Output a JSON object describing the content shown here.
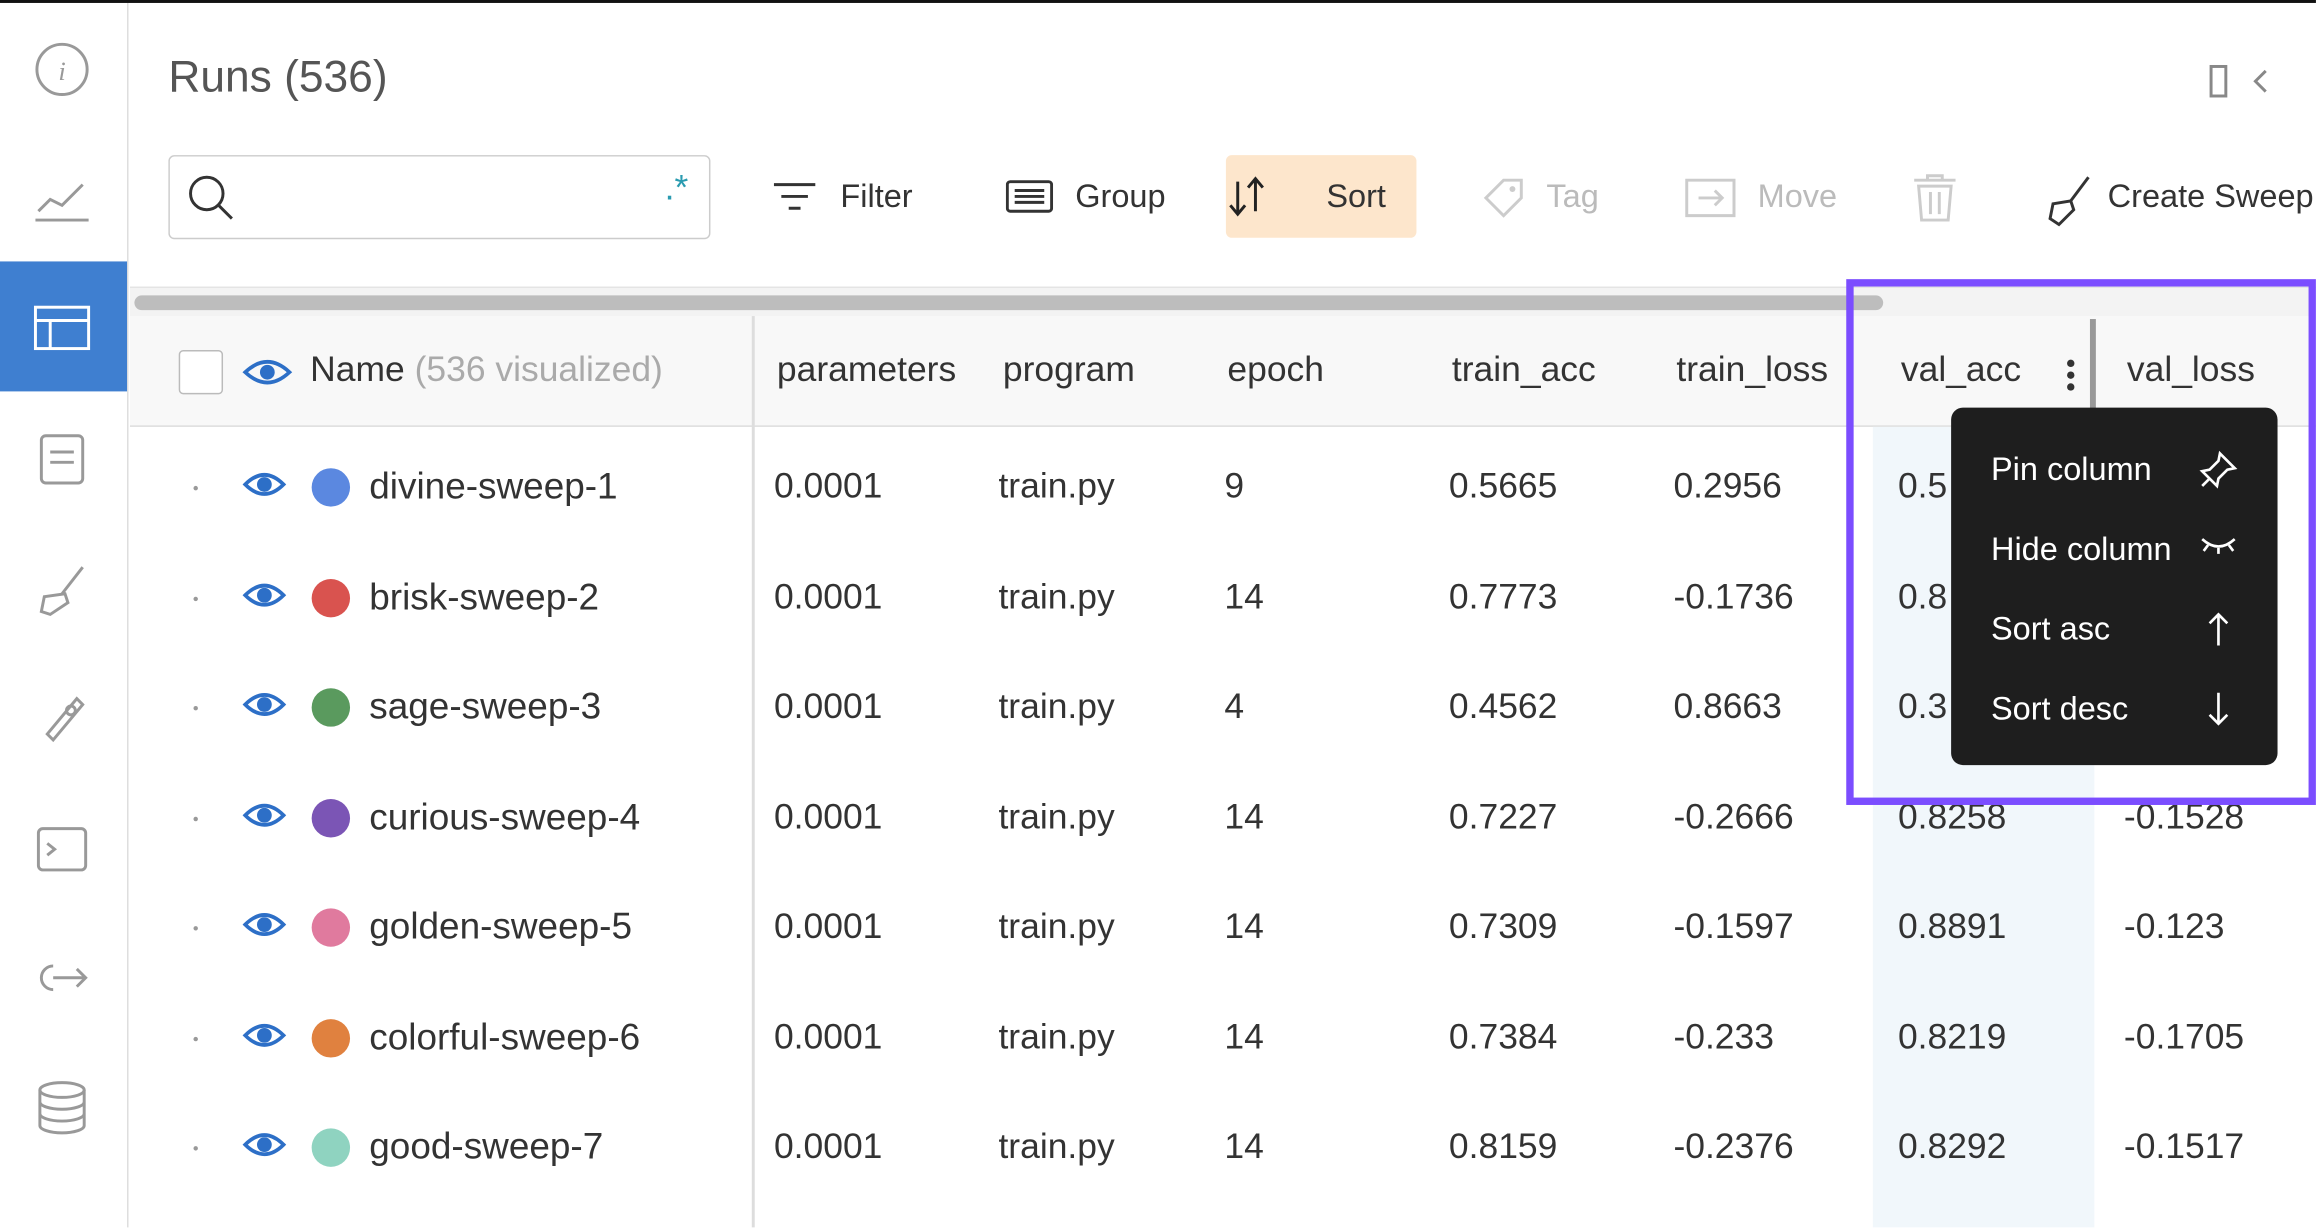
{
  "header": {
    "title": "Runs (536)"
  },
  "toolbar": {
    "buttons": [
      "Filter",
      "Group",
      "Sort",
      "Tag",
      "Move",
      "Create Sweep"
    ]
  },
  "table": {
    "name_header": "Name",
    "visualized": "(536 visualized)",
    "columns": [
      "parameters",
      "program",
      "epoch",
      "train_acc",
      "train_loss",
      "val_acc",
      "val_loss"
    ],
    "rows": [
      {
        "name": "divine-sweep-1",
        "color": "#5b88e0",
        "cells": [
          "0.0001",
          "train.py",
          "9",
          "0.5665",
          "0.2956",
          "0.5",
          null
        ]
      },
      {
        "name": "brisk-sweep-2",
        "color": "#d9534f",
        "cells": [
          "0.0001",
          "train.py",
          "14",
          "0.7773",
          "-0.1736",
          "0.8",
          null
        ]
      },
      {
        "name": "sage-sweep-3",
        "color": "#5a9a5e",
        "cells": [
          "0.0001",
          "train.py",
          "4",
          "0.4562",
          "0.8663",
          "0.3",
          null
        ]
      },
      {
        "name": "curious-sweep-4",
        "color": "#7b55b5",
        "cells": [
          "0.0001",
          "train.py",
          "14",
          "0.7227",
          "-0.2666",
          "0.8258",
          "-0.1528"
        ]
      },
      {
        "name": "golden-sweep-5",
        "color": "#e07a9e",
        "cells": [
          "0.0001",
          "train.py",
          "14",
          "0.7309",
          "-0.1597",
          "0.8891",
          "-0.123"
        ]
      },
      {
        "name": "colorful-sweep-6",
        "color": "#e0813f",
        "cells": [
          "0.0001",
          "train.py",
          "14",
          "0.7384",
          "-0.233",
          "0.8219",
          "-0.1705"
        ]
      },
      {
        "name": "good-sweep-7",
        "color": "#8fd3c0",
        "cells": [
          "0.0001",
          "train.py",
          "14",
          "0.8159",
          "-0.2376",
          "0.8292",
          "-0.1517"
        ]
      }
    ]
  },
  "menu": {
    "items": [
      "Pin column",
      "Hide column",
      "Sort asc",
      "Sort desc"
    ]
  }
}
